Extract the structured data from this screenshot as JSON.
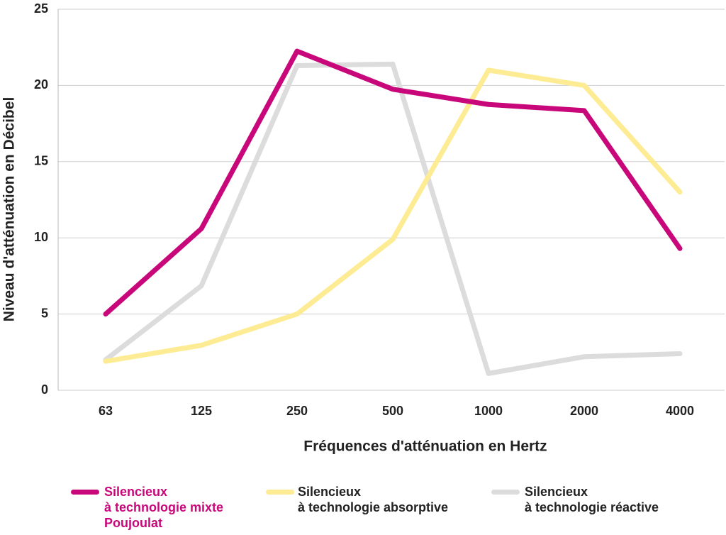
{
  "chart_data": {
    "type": "line",
    "x_label": "Fréquences d'atténuation en Hertz",
    "y_label": "Niveau d'atténuation en Décibel",
    "categories": [
      "63",
      "125",
      "250",
      "500",
      "1000",
      "2000",
      "4000"
    ],
    "series": [
      {
        "name": "Silencieux\nà technologie mixte\nPoujoulat",
        "color": "#c8087a",
        "values": [
          5,
          10.6,
          22.25,
          19.75,
          18.75,
          18.35,
          9.3
        ]
      },
      {
        "name": "Silencieux\nà technologie absorptive",
        "color": "#fdec94",
        "values": [
          1.9,
          2.95,
          5,
          9.9,
          21,
          20,
          13
        ]
      },
      {
        "name": "Silencieux\nà technologie réactive",
        "color": "#dcdcdc",
        "values": [
          2,
          6.85,
          21.3,
          21.4,
          1.1,
          2.2,
          2.4
        ]
      }
    ],
    "ylim": [
      0,
      25
    ],
    "yticks": [
      0,
      5,
      10,
      15,
      20,
      25
    ],
    "grid": true
  }
}
